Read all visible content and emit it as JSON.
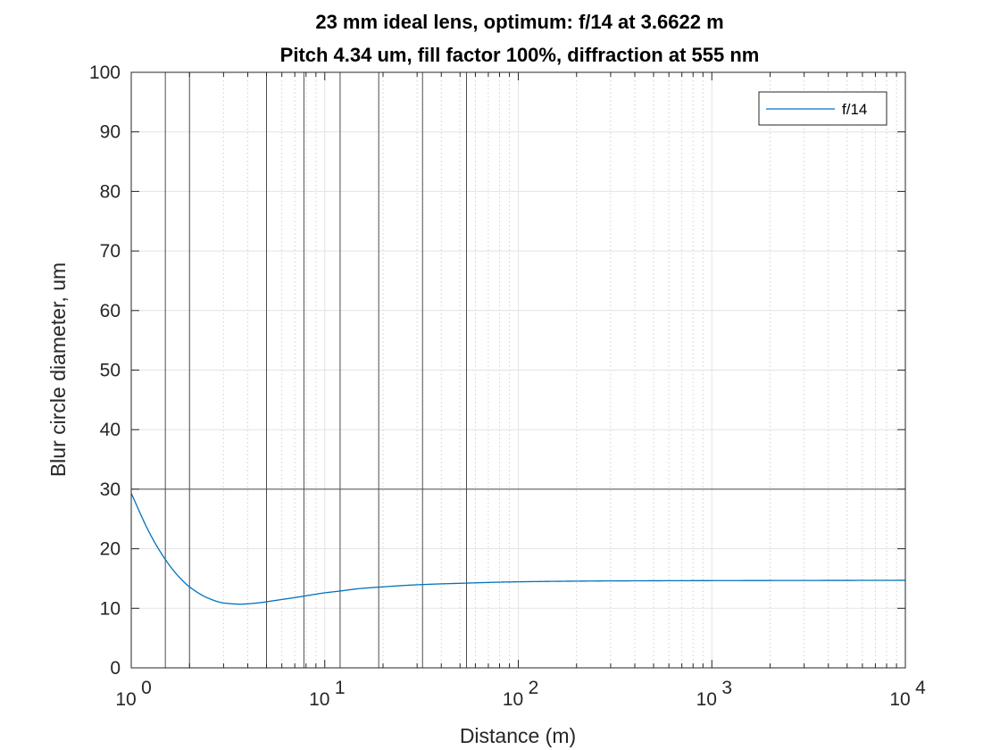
{
  "chart_data": {
    "type": "line",
    "title": [
      "23 mm ideal lens, optimum: f/14 at 3.6622 m",
      "Pitch 4.34 um, fill factor 100%, diffraction at 555 nm"
    ],
    "xlabel": "Distance (m)",
    "ylabel": "Blur circle diameter, um",
    "xscale": "log",
    "xlim": [
      1,
      10000
    ],
    "ylim": [
      0,
      100
    ],
    "x_ticks": [
      {
        "base": "10",
        "exp": "0",
        "value": 1
      },
      {
        "base": "10",
        "exp": "1",
        "value": 10
      },
      {
        "base": "10",
        "exp": "2",
        "value": 100
      },
      {
        "base": "10",
        "exp": "3",
        "value": 1000
      },
      {
        "base": "10",
        "exp": "4",
        "value": 10000
      }
    ],
    "y_ticks": [
      "0",
      "10",
      "20",
      "30",
      "40",
      "50",
      "60",
      "70",
      "80",
      "90",
      "100"
    ],
    "grid": true,
    "legend": {
      "placement": "top-right",
      "entries": [
        "f/14"
      ]
    },
    "series": [
      {
        "name": "f/14",
        "color": "#0072BD",
        "x": [
          1,
          1.25,
          1.5,
          1.75,
          2,
          2.5,
          3,
          3.66,
          4.5,
          5.5,
          7,
          8,
          10,
          12,
          15,
          20,
          30,
          50,
          100,
          300,
          1000,
          10000
        ],
        "y": [
          29.3,
          22.5,
          18.2,
          15.4,
          13.6,
          11.7,
          10.9,
          10.7,
          10.9,
          11.3,
          11.8,
          12.1,
          12.6,
          12.9,
          13.3,
          13.6,
          13.95,
          14.2,
          14.45,
          14.6,
          14.65,
          14.7
        ]
      }
    ],
    "reference_lines": {
      "horizontal": [
        30
      ],
      "vertical": [
        1.5,
        2,
        5,
        7.8,
        12,
        19,
        32,
        54
      ]
    }
  }
}
